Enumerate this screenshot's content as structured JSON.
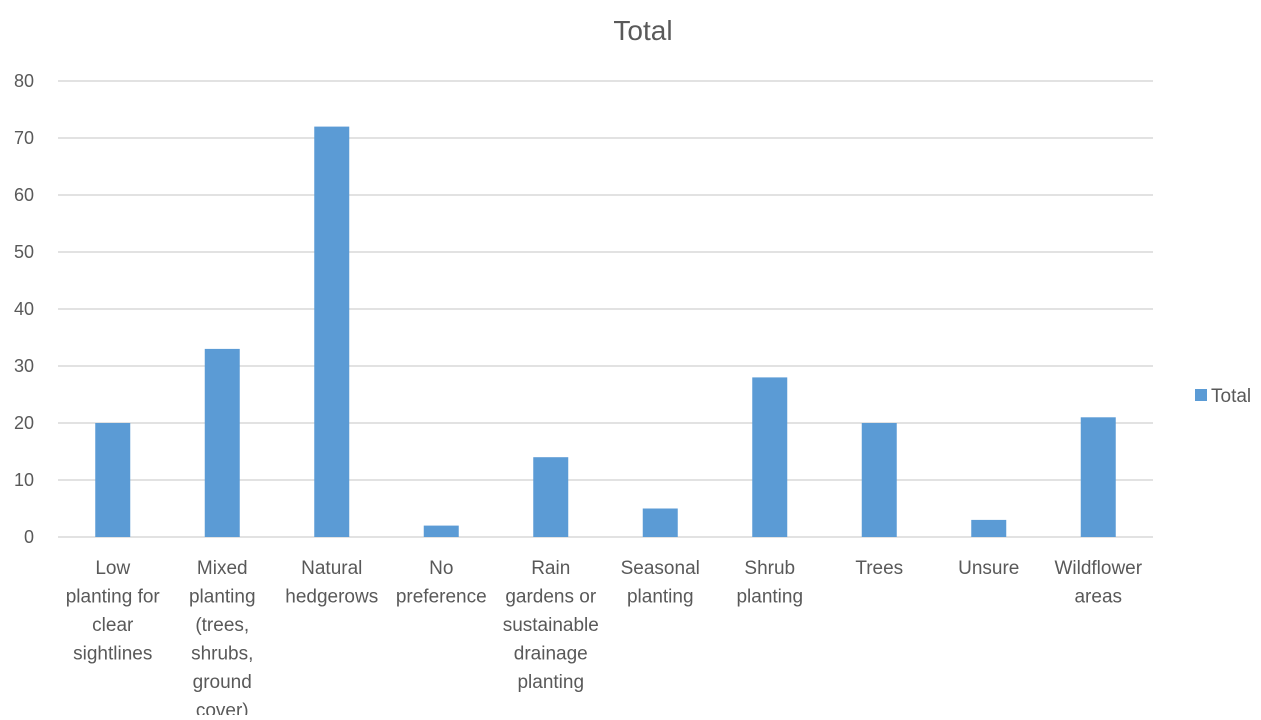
{
  "chart_data": {
    "type": "bar",
    "title": "Total",
    "categories": [
      "Low planting for clear sightlines",
      "Mixed planting (trees, shrubs, ground cover)",
      "Natural hedgerows",
      "No preference",
      "Rain gardens or sustainable drainage planting",
      "Seasonal planting",
      "Shrub planting",
      "Trees",
      "Unsure",
      "Wildflower areas"
    ],
    "category_lines": [
      [
        "Low",
        "planting for",
        "clear",
        "sightlines"
      ],
      [
        "Mixed",
        "planting",
        "(trees,",
        "shrubs,",
        "ground",
        "cover)"
      ],
      [
        "Natural",
        "hedgerows"
      ],
      [
        "No",
        "preference"
      ],
      [
        "Rain",
        "gardens or",
        "sustainable",
        "drainage",
        "planting"
      ],
      [
        "Seasonal",
        "planting"
      ],
      [
        "Shrub",
        "planting"
      ],
      [
        "Trees"
      ],
      [
        "Unsure"
      ],
      [
        "Wildflower",
        "areas"
      ]
    ],
    "series": [
      {
        "name": "Total",
        "values": [
          20,
          33,
          72,
          2,
          14,
          5,
          28,
          20,
          3,
          21
        ]
      }
    ],
    "yticks": [
      "0",
      "10",
      "20",
      "30",
      "40",
      "50",
      "60",
      "70",
      "80"
    ],
    "ylim": [
      0,
      80
    ],
    "grid": true,
    "legend_position": "right",
    "colors": {
      "bar": "#5b9bd5",
      "grid": "#d9d9d9",
      "text": "#595959"
    }
  }
}
